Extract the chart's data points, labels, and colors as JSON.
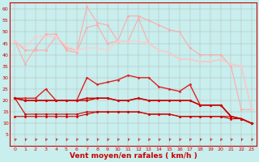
{
  "background_color": "#c8eeed",
  "grid_color": "#b0b0b0",
  "xlabel": "Vent moyen/en rafales ( km/h )",
  "xlabel_color": "#cc0000",
  "xlabel_fontsize": 6.5,
  "tick_color": "#cc0000",
  "ylim": [
    0,
    63
  ],
  "xlim": [
    -0.5,
    23.5
  ],
  "yticks": [
    5,
    10,
    15,
    20,
    25,
    30,
    35,
    40,
    45,
    50,
    55,
    60
  ],
  "xticks": [
    0,
    1,
    2,
    3,
    4,
    5,
    6,
    7,
    8,
    9,
    10,
    11,
    12,
    13,
    14,
    15,
    16,
    17,
    18,
    19,
    20,
    21,
    22,
    23
  ],
  "line_series": [
    {
      "x": [
        0,
        1,
        2,
        3,
        4,
        5,
        6,
        7,
        8,
        9,
        10,
        11,
        12,
        13,
        14,
        15,
        16,
        17,
        18,
        19,
        20,
        21,
        22,
        23
      ],
      "y": [
        46,
        36,
        43,
        49,
        49,
        42,
        41,
        52,
        53,
        45,
        46,
        57,
        57,
        55,
        53,
        51,
        50,
        43,
        40,
        40,
        40,
        35,
        16,
        16
      ],
      "color": "#ffaaaa",
      "lw": 0.8,
      "marker": "D",
      "ms": 1.5
    },
    {
      "x": [
        0,
        1,
        2,
        3,
        4,
        5,
        6,
        7,
        8,
        9,
        10,
        11,
        12,
        13,
        14,
        15,
        16,
        17,
        18,
        19,
        20,
        21,
        22,
        23
      ],
      "y": [
        46,
        42,
        42,
        42,
        48,
        43,
        42,
        61,
        54,
        53,
        46,
        46,
        56,
        45,
        42,
        41,
        38,
        38,
        37,
        37,
        38,
        36,
        35,
        16
      ],
      "color": "#ffaaaa",
      "lw": 0.8,
      "marker": "D",
      "ms": 1.5
    },
    {
      "x": [
        0,
        1,
        2,
        3,
        4,
        5,
        6,
        7,
        8,
        9,
        10,
        11,
        12,
        13,
        14,
        15,
        16,
        17,
        18,
        19,
        20,
        21,
        22,
        23
      ],
      "y": [
        46,
        43,
        48,
        48,
        48,
        44,
        42,
        43,
        43,
        42,
        46,
        46,
        46,
        45,
        42,
        41,
        38,
        38,
        37,
        37,
        38,
        36,
        35,
        16
      ],
      "color": "#ffcccc",
      "lw": 0.8,
      "marker": "D",
      "ms": 1.5
    },
    {
      "x": [
        0,
        1,
        2,
        3,
        4,
        5,
        6,
        7,
        8,
        9,
        10,
        11,
        12,
        13,
        14,
        15,
        16,
        17,
        18,
        19,
        20,
        21,
        22,
        23
      ],
      "y": [
        21,
        21,
        21,
        25,
        20,
        20,
        20,
        30,
        27,
        28,
        29,
        31,
        30,
        30,
        26,
        25,
        24,
        27,
        18,
        18,
        18,
        13,
        12,
        10
      ],
      "color": "#dd2222",
      "lw": 1.0,
      "marker": "D",
      "ms": 1.5
    },
    {
      "x": [
        0,
        1,
        2,
        3,
        4,
        5,
        6,
        7,
        8,
        9,
        10,
        11,
        12,
        13,
        14,
        15,
        16,
        17,
        18,
        19,
        20,
        21,
        22,
        23
      ],
      "y": [
        21,
        20,
        20,
        20,
        20,
        20,
        20,
        20,
        21,
        21,
        20,
        20,
        21,
        20,
        20,
        20,
        20,
        20,
        18,
        18,
        18,
        13,
        12,
        10
      ],
      "color": "#cc0000",
      "lw": 1.0,
      "marker": "D",
      "ms": 1.5
    },
    {
      "x": [
        0,
        1,
        2,
        3,
        4,
        5,
        6,
        7,
        8,
        9,
        10,
        11,
        12,
        13,
        14,
        15,
        16,
        17,
        18,
        19,
        20,
        21,
        22,
        23
      ],
      "y": [
        21,
        20,
        20,
        20,
        20,
        20,
        20,
        21,
        21,
        21,
        20,
        20,
        21,
        20,
        20,
        20,
        20,
        20,
        18,
        18,
        18,
        13,
        12,
        10
      ],
      "color": "#cc0000",
      "lw": 1.0,
      "marker": "D",
      "ms": 1.5
    },
    {
      "x": [
        0,
        1,
        2,
        3,
        4,
        5,
        6,
        7,
        8,
        9,
        10,
        11,
        12,
        13,
        14,
        15,
        16,
        17,
        18,
        19,
        20,
        21,
        22,
        23
      ],
      "y": [
        13,
        13,
        13,
        13,
        13,
        13,
        13,
        14,
        15,
        15,
        15,
        15,
        15,
        14,
        14,
        14,
        13,
        13,
        13,
        13,
        13,
        13,
        12,
        10
      ],
      "color": "#cc0000",
      "lw": 0.8,
      "marker": "D",
      "ms": 1.5
    },
    {
      "x": [
        0,
        1,
        2,
        3,
        4,
        5,
        6,
        7,
        8,
        9,
        10,
        11,
        12,
        13,
        14,
        15,
        16,
        17,
        18,
        19,
        20,
        21,
        22,
        23
      ],
      "y": [
        21,
        14,
        14,
        14,
        14,
        14,
        14,
        15,
        15,
        15,
        15,
        15,
        15,
        14,
        14,
        14,
        13,
        13,
        13,
        13,
        13,
        12,
        12,
        10
      ],
      "color": "#cc0000",
      "lw": 0.8,
      "marker": "D",
      "ms": 1.5
    }
  ],
  "arrow_color": "#cc0000",
  "spine_color": "#cc0000"
}
